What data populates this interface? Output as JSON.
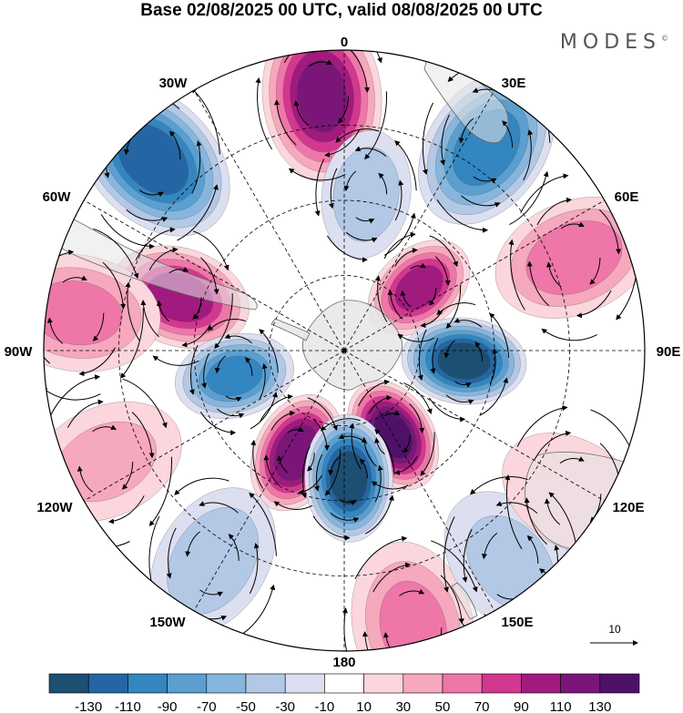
{
  "title": "Base 02/08/2025 00 UTC, valid 08/08/2025 00 UTC",
  "brand": {
    "name": "MODES",
    "mark": "©"
  },
  "longitude_labels": [
    "0",
    "30E",
    "60E",
    "90E",
    "120E",
    "150E",
    "180",
    "150W",
    "120W",
    "90W",
    "60W",
    "30W"
  ],
  "vector_reference": {
    "value": "10"
  },
  "colorbar": {
    "ticks": [
      "-130",
      "-110",
      "-90",
      "-70",
      "-50",
      "-30",
      "-10",
      "10",
      "30",
      "50",
      "70",
      "90",
      "110",
      "130"
    ],
    "colors": [
      "#1c4f72",
      "#2466a3",
      "#3486c0",
      "#5a9fd0",
      "#86b6dd",
      "#b2c8e5",
      "#dcdff0",
      "#ffffff",
      "#fbd6dc",
      "#f6a8bd",
      "#ef76a8",
      "#d3378f",
      "#a11a7e",
      "#7a1678",
      "#4f1167"
    ]
  },
  "anomaly_centers": [
    {
      "lon": -5,
      "colat": 34,
      "value": 110
    },
    {
      "lon": 35,
      "colat": 33,
      "value": -100
    },
    {
      "lon": -45,
      "colat": 36,
      "value": -120
    },
    {
      "lon": 68,
      "colat": 33,
      "value": 60
    },
    {
      "lon": 50,
      "colat": 13,
      "value": 90
    },
    {
      "lon": 8,
      "colat": 21,
      "value": -40
    },
    {
      "lon": -72,
      "colat": 23,
      "value": 95
    },
    {
      "lon": -82,
      "colat": 36,
      "value": 50
    },
    {
      "lon": -103,
      "colat": 15,
      "value": -90
    },
    {
      "lon": 95,
      "colat": 16,
      "value": -130
    },
    {
      "lon": 150,
      "colat": 13,
      "value": 130
    },
    {
      "lon": -155,
      "colat": 15,
      "value": 120
    },
    {
      "lon": 178,
      "colat": 17,
      "value": -130
    },
    {
      "lon": -115,
      "colat": 35,
      "value": 30
    },
    {
      "lon": -148,
      "colat": 33,
      "value": -40
    },
    {
      "lon": 166,
      "colat": 38,
      "value": 50
    },
    {
      "lon": 142,
      "colat": 36,
      "value": -30
    },
    {
      "lon": 122,
      "colat": 36,
      "value": 20
    }
  ]
}
